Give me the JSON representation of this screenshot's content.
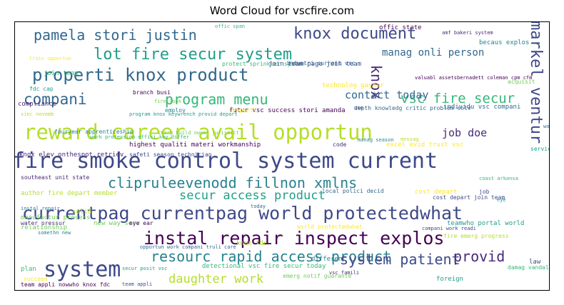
{
  "chart_data": {
    "type": "wordcloud",
    "title": "Word Cloud for vscfire.com",
    "colors": [
      "#440154",
      "#482878",
      "#3e4989",
      "#31688e",
      "#26828e",
      "#1f9e89",
      "#35b779",
      "#6ece58",
      "#b5de2b",
      "#fde725"
    ],
    "words": [
      {
        "text": "fire smoke control system current",
        "weight": 30,
        "c": 2
      },
      {
        "text": "reward career avail opportun",
        "weight": 29,
        "c": 8
      },
      {
        "text": "currentpag currentpag world protectedwhat",
        "weight": 25,
        "c": 2
      },
      {
        "text": "instal repair inspect explos",
        "weight": 25,
        "c": 0
      },
      {
        "text": "system",
        "weight": 30,
        "c": 2
      },
      {
        "text": "properti knox product",
        "weight": 24,
        "c": 3
      },
      {
        "text": "lot fire secur system",
        "weight": 22,
        "c": 5
      },
      {
        "text": "pamela stori justin",
        "weight": 20,
        "c": 3
      },
      {
        "text": "knox document",
        "weight": 22,
        "c": 2
      },
      {
        "text": "clipruleevenodd fillnon xmlns",
        "weight": 20,
        "c": 4
      },
      {
        "text": "resourc rapid access product",
        "weight": 20,
        "c": 4
      },
      {
        "text": "system patient",
        "weight": 20,
        "c": 2
      },
      {
        "text": "compani",
        "weight": 21,
        "c": 3
      },
      {
        "text": "program menu",
        "weight": 20,
        "c": 6
      },
      {
        "text": "vsc fire secur",
        "weight": 19,
        "c": 6
      },
      {
        "text": "markel ventur",
        "weight": 22,
        "c": 2
      },
      {
        "text": "knox",
        "weight": 20,
        "c": 1
      },
      {
        "text": "provid",
        "weight": 20,
        "c": 1
      },
      {
        "text": "daughter work",
        "weight": 17,
        "c": 8
      },
      {
        "text": "secur access product",
        "weight": 17,
        "c": 5
      },
      {
        "text": "contact today",
        "weight": 15,
        "c": 3
      },
      {
        "text": "manag onli person",
        "weight": 14,
        "c": 3
      },
      {
        "text": "job doe",
        "weight": 15,
        "c": 1
      }
    ],
    "small_words": [
      "futur vsc success stori amanda",
      "depth knowledg critic problem solv",
      "work profession effici key differ",
      "excel evid trust vsc",
      "cost depart join team",
      "program knox keywrench provid depart",
      "author fire depart member",
      "southeast unit state",
      "instal repair",
      "manufactur process",
      "team appli nowwho knox fdc",
      "opportun work compani truli care",
      "detectional vsc fire secur today",
      "world protectedwhat",
      "compani work readi",
      "teamwho portal world",
      "fire emerg progress",
      "amf bakeri system",
      "becaus explos",
      "acquisit",
      "valuabl assetsbernadett coleman cpm cfm",
      "individu vsc compani",
      "protect sprinkler system",
      "train opportun",
      "join team page join team",
      "fdc cap",
      "sinc novemb",
      "knox elev onthespot retriev",
      "fouryear apprenticeship",
      "charg build owner jurisdict",
      "highest qualiti materi workmanship",
      "local polici decid",
      "coast arkansa",
      "cost depart",
      "job",
      "eye",
      "solid",
      "water pressur",
      "somethn new",
      "new way serv",
      "eye ear",
      "today",
      "plan",
      "succeed",
      "team appli",
      "foreign",
      "career",
      "vsc famili",
      "differenc",
      "emerg notif guarante",
      "career explor option",
      "right busi",
      "damag vandal debri product",
      "loud clear vsc",
      "law",
      "servic recharg",
      "messag",
      "compliance",
      "employ",
      "fire look",
      "offic state",
      "industri current vsc",
      "offic span",
      "technolog gayner",
      "safeti season technician",
      "secur posit vsc",
      "knox fdc",
      "code",
      "manag season",
      "relationship",
      "branch busi",
      "work",
      "join team",
      "properti",
      "uso"
    ]
  }
}
